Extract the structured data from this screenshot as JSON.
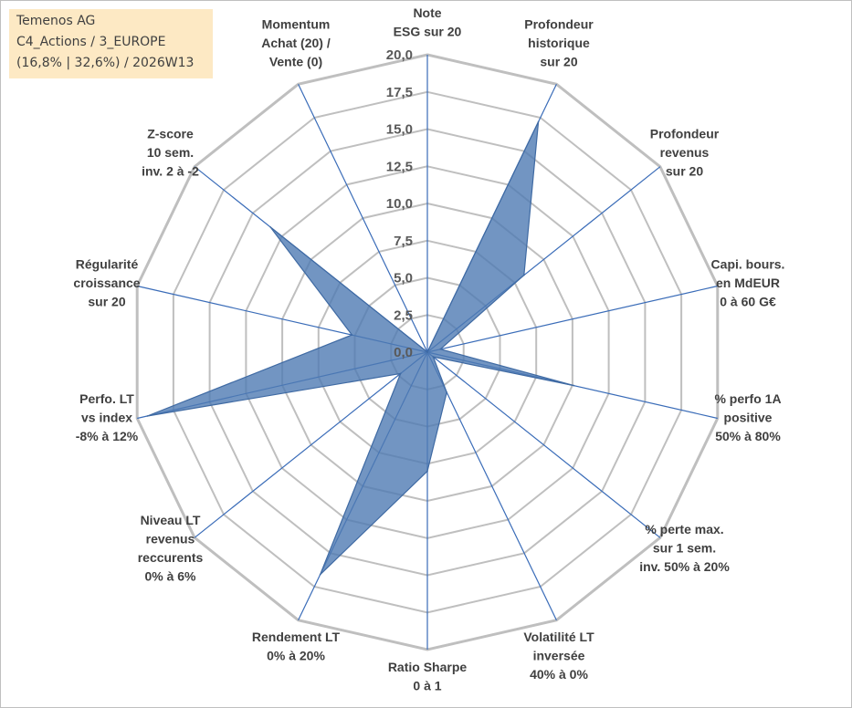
{
  "info": {
    "line1": "Temenos AG",
    "line2": "C4_Actions / 3_EUROPE",
    "line3": "(16,8% | 32,6%) / 2026W13"
  },
  "chart_data": {
    "type": "radar",
    "rmin": 0,
    "rmax": 20,
    "tick_step": 2.5,
    "tick_labels": [
      "0,0",
      "2,5",
      "5,0",
      "7,5",
      "10,0",
      "12,5",
      "15,0",
      "17,5",
      "20,0"
    ],
    "axes": [
      {
        "label": [
          "Note",
          "ESG sur 20"
        ],
        "value": 0.0
      },
      {
        "label": [
          "Profondeur",
          "historique",
          "sur 20"
        ],
        "value": 17.2
      },
      {
        "label": [
          "Profondeur",
          "revenus",
          "sur 20"
        ],
        "value": 8.3
      },
      {
        "label": [
          "Capi. bours.",
          "en MdEUR",
          "0 à 60 G€"
        ],
        "value": 0.9
      },
      {
        "label": [
          "% perfo 1A",
          "positive",
          "50% à 80%"
        ],
        "value": 10.1
      },
      {
        "label": [
          "% perte max.",
          "sur 1 sem.",
          "inv. 50% à 20%"
        ],
        "value": 0.5
      },
      {
        "label": [
          "Volatilité LT",
          "inversée",
          "40% à 0%"
        ],
        "value": 3.0
      },
      {
        "label": [
          "Ratio Sharpe",
          "0 à 1"
        ],
        "value": 8.0
      },
      {
        "label": [
          "Rendement LT",
          "0% à 20%"
        ],
        "value": 16.6
      },
      {
        "label": [
          "Niveau LT",
          "revenus",
          "reccurents",
          "0% à 6%"
        ],
        "value": 2.3
      },
      {
        "label": [
          "Perfo. LT",
          "vs index",
          "-8% à 12%"
        ],
        "value": 19.3
      },
      {
        "label": [
          "Régularité",
          "croissance",
          "sur 20"
        ],
        "value": 5.2
      },
      {
        "label": [
          "Z-score",
          "10 sem.",
          "inv. 2 à -2"
        ],
        "value": 13.5
      },
      {
        "label": [
          "Momentum",
          "Achat (20) /",
          "Vente (0)"
        ],
        "value": 0.0
      }
    ],
    "colors": {
      "fill": "#4f7bb3",
      "fill_opacity": 0.8,
      "stroke": "#3f6aa3",
      "grid": "#bfbfbf",
      "spoke": "#3a6cb8"
    }
  }
}
